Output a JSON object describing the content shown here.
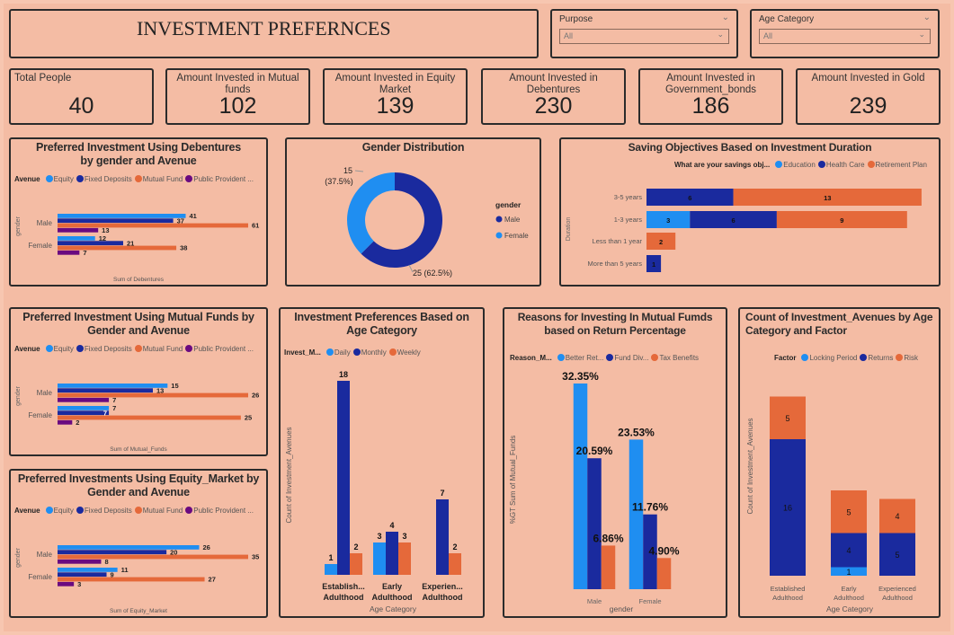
{
  "title": "INVESTMENT PREFERNCES",
  "colors": {
    "light_blue": "#1f8ef1",
    "dark_blue": "#1a2a9e",
    "orange": "#e5693a",
    "purple": "#6a0a80"
  },
  "filters": [
    {
      "label": "Purpose",
      "value": "All"
    },
    {
      "label": "Age Category",
      "value": "All"
    }
  ],
  "kpis": [
    {
      "label": "Total People",
      "value": "40"
    },
    {
      "label": "Amount Invested in Mutual funds",
      "value": "102"
    },
    {
      "label": "Amount Invested in Equity Market",
      "value": "139"
    },
    {
      "label": "Amount Invested in Debentures",
      "value": "230"
    },
    {
      "label": "Amount Invested in Government_bonds",
      "value": "186"
    },
    {
      "label": "Amount Invested in Gold",
      "value": "239"
    }
  ],
  "chart_data": [
    {
      "id": "debentures",
      "type": "bar",
      "orientation": "horizontal",
      "title": "Preferred Investment Using Debentures by gender and Avenue",
      "legend_title": "Avenue",
      "categories": [
        "Male",
        "Female"
      ],
      "xlabel": "Sum of Debentures",
      "ylabel": "gender",
      "series": [
        {
          "name": "Equity",
          "values": [
            41,
            12
          ]
        },
        {
          "name": "Fixed Deposits",
          "values": [
            37,
            21
          ]
        },
        {
          "name": "Mutual Fund",
          "values": [
            61,
            38
          ]
        },
        {
          "name": "Public Provident ...",
          "values": [
            13,
            7
          ]
        }
      ]
    },
    {
      "id": "gender",
      "type": "pie",
      "title": "Gender Distribution",
      "legend_title": "gender",
      "slices": [
        {
          "name": "Male",
          "value": 25,
          "label": "25 (62.5%)"
        },
        {
          "name": "Female",
          "value": 15,
          "label": "15 (37.5%)"
        }
      ]
    },
    {
      "id": "saving",
      "type": "bar",
      "orientation": "horizontal",
      "stacked": true,
      "title": "Saving Objectives Based on Investment Duration",
      "legend_title": "What are your savings obj...",
      "ylabel": "Duration",
      "categories": [
        "3-5 years",
        "1-3 years",
        "Less than 1 year",
        "More than 5 years"
      ],
      "series": [
        {
          "name": "Education",
          "values": [
            0,
            3,
            0,
            0
          ]
        },
        {
          "name": "Health Care",
          "values": [
            6,
            6,
            0,
            1
          ]
        },
        {
          "name": "Retirement Plan",
          "values": [
            13,
            9,
            2,
            0
          ]
        }
      ]
    },
    {
      "id": "mutual",
      "type": "bar",
      "orientation": "horizontal",
      "title": "Preferred Investment Using Mutual Funds by Gender and Avenue",
      "legend_title": "Avenue",
      "categories": [
        "Male",
        "Female"
      ],
      "xlabel": "Sum of Mutual_Funds",
      "ylabel": "gender",
      "series": [
        {
          "name": "Equity",
          "values": [
            15,
            7
          ]
        },
        {
          "name": "Fixed Deposits",
          "values": [
            13,
            7
          ]
        },
        {
          "name": "Mutual Fund",
          "values": [
            26,
            25
          ]
        },
        {
          "name": "Public Provident ...",
          "values": [
            7,
            2
          ]
        }
      ]
    },
    {
      "id": "equity",
      "type": "bar",
      "orientation": "horizontal",
      "title": "Preferred Investments Using Equity_Market by Gender and Avenue",
      "legend_title": "Avenue",
      "categories": [
        "Male",
        "Female"
      ],
      "xlabel": "Sum of Equity_Market",
      "ylabel": "gender",
      "series": [
        {
          "name": "Equity",
          "values": [
            26,
            11
          ]
        },
        {
          "name": "Fixed Deposits",
          "values": [
            20,
            9
          ]
        },
        {
          "name": "Mutual Fund",
          "values": [
            35,
            27
          ]
        },
        {
          "name": "Public Provident ...",
          "values": [
            8,
            3
          ]
        }
      ]
    },
    {
      "id": "age",
      "type": "bar",
      "orientation": "vertical",
      "title": "Investment Preferences Based on Age Category",
      "legend_title": "Invest_M...",
      "xlabel": "Age Category",
      "ylabel": "Count of Investment_Avenues",
      "categories": [
        [
          "Establish...",
          "Adulthood"
        ],
        [
          "Early",
          "Adulthood"
        ],
        [
          "Experien...",
          "Adulthood"
        ]
      ],
      "series": [
        {
          "name": "Daily",
          "values": [
            1,
            3,
            null
          ]
        },
        {
          "name": "Monthly",
          "values": [
            18,
            4,
            7
          ]
        },
        {
          "name": "Weekly",
          "values": [
            2,
            3,
            2
          ]
        }
      ]
    },
    {
      "id": "reasons",
      "type": "bar",
      "orientation": "vertical",
      "title": "Reasons for Investing In Mutual Fumds based on Return Percentage",
      "legend_title": "Reason_M...",
      "xlabel": "gender",
      "ylabel": "%GT Sum of Mutual_Funds",
      "categories": [
        "Male",
        "Female"
      ],
      "unit": "%",
      "series": [
        {
          "name": "Better Ret...",
          "values": [
            32.35,
            23.53
          ]
        },
        {
          "name": "Fund Div...",
          "values": [
            20.59,
            11.76
          ]
        },
        {
          "name": "Tax Benefits",
          "values": [
            6.86,
            4.9
          ]
        }
      ]
    },
    {
      "id": "count",
      "type": "bar",
      "orientation": "vertical",
      "stacked": true,
      "title": "Count of Investment_Avenues by Age Category and Factor",
      "legend_title": "Factor",
      "xlabel": "Age Category",
      "ylabel": "Count of Investment_Avenues",
      "categories": [
        [
          "Established",
          "Adulthood"
        ],
        [
          "Early",
          "Adulthood"
        ],
        [
          "Experienced",
          "Adulthood"
        ]
      ],
      "series": [
        {
          "name": "Locking Period",
          "values": [
            0,
            1,
            0
          ]
        },
        {
          "name": "Returns",
          "values": [
            16,
            4,
            5
          ]
        },
        {
          "name": "Risk",
          "values": [
            5,
            5,
            4
          ]
        }
      ]
    }
  ]
}
